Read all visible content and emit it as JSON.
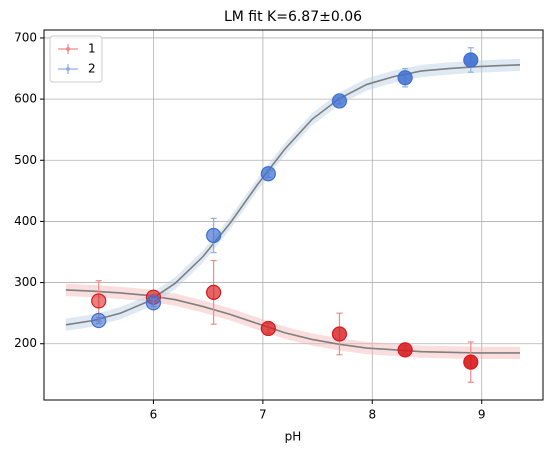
{
  "chart_data": {
    "type": "scatter",
    "title": "LM fit K=6.87±0.06",
    "x_label": "pH",
    "x": [
      5.5,
      6.0,
      6.55,
      7.05,
      7.7,
      8.3,
      8.9
    ],
    "series": [
      {
        "name": "1",
        "color": "#d7191c",
        "bar_color": "#f08a8a",
        "values": [
          270,
          276,
          284,
          225,
          216,
          190,
          170
        ],
        "errors": [
          33,
          5,
          52,
          8,
          34,
          7,
          33
        ]
      },
      {
        "name": "2",
        "color": "#3f6fd0",
        "bar_color": "#8fb0e0",
        "values": [
          238,
          267,
          377,
          478,
          597,
          635,
          664
        ],
        "errors": [
          5,
          6,
          28,
          6,
          5,
          15,
          20
        ]
      }
    ],
    "fit_x": [
      5.2,
      5.45,
      5.7,
      5.95,
      6.2,
      6.45,
      6.7,
      6.95,
      7.2,
      7.45,
      7.7,
      7.95,
      8.2,
      8.45,
      8.7,
      8.95,
      9.2,
      9.35
    ],
    "fits": [
      {
        "color": "#7f7f7f",
        "band_color": "#f4b6b6",
        "band": 10,
        "values": [
          288,
          286,
          283,
          279,
          272,
          261,
          248,
          233,
          218,
          207,
          199,
          193,
          190,
          187,
          186,
          185,
          185,
          185
        ]
      },
      {
        "color": "#7f7f7f",
        "band_color": "#b9cfe6",
        "band": 10,
        "values": [
          231,
          238,
          250,
          269,
          299,
          342,
          397,
          460,
          518,
          567,
          601,
          624,
          637,
          646,
          650,
          653,
          655,
          656
        ]
      }
    ],
    "xlim": [
      5.0,
      9.56
    ],
    "ylim": [
      108,
      713
    ],
    "xticks": [
      6,
      7,
      8,
      9
    ],
    "yticks": [
      200,
      300,
      400,
      500,
      600,
      700
    ],
    "grid": true,
    "legend": "upper left"
  }
}
